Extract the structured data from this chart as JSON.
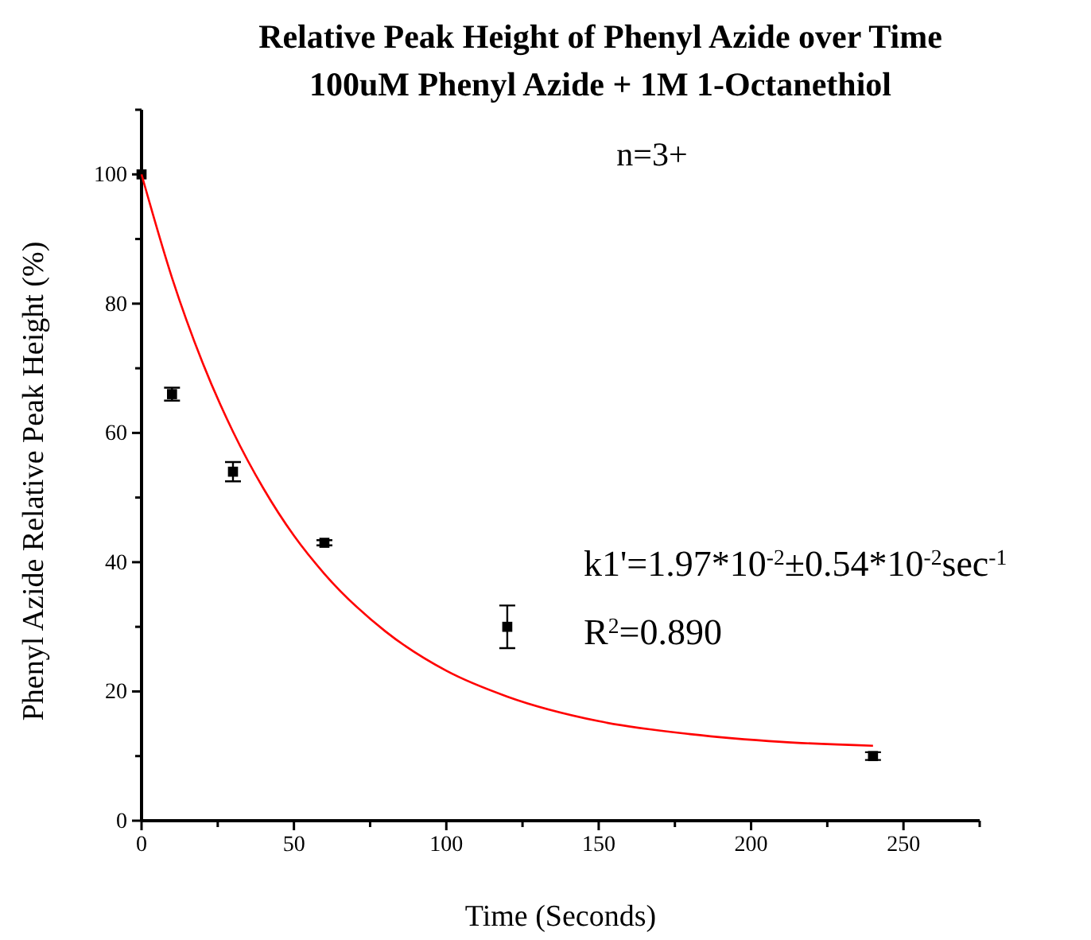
{
  "chart_data": {
    "type": "scatter",
    "title": "Relative Peak Height of Phenyl Azide over Time",
    "subtitle": "100uM Phenyl Azide + 1M 1-Octanethiol",
    "xlabel": "Time (Seconds)",
    "ylabel": "Phenyl Azide Relative Peak Height (%)",
    "annotations": [
      "n=3+",
      "k1'=1.97*10$^{-2}$±0.54*10$^{-2}$sec$^{-1}$",
      "R$^{2}$=0.890"
    ],
    "xlim": [
      0,
      275
    ],
    "ylim": [
      0,
      110
    ],
    "xticks": [
      0,
      {
        "value": 25,
        "label": null
      },
      50,
      {
        "value": 75,
        "label": null
      },
      100,
      {
        "value": 125,
        "label": null
      },
      150,
      {
        "value": 175,
        "label": null
      },
      200,
      {
        "value": 225,
        "label": null
      },
      250,
      {
        "value": 275,
        "label": null
      }
    ],
    "yticks": [
      0,
      {
        "value": 10,
        "label": null
      },
      20,
      {
        "value": 30,
        "label": null
      },
      40,
      {
        "value": 50,
        "label": null
      },
      60,
      {
        "value": 70,
        "label": null
      },
      80,
      {
        "value": 90,
        "label": null
      },
      100,
      {
        "value": 110,
        "label": null
      }
    ],
    "grid": false,
    "marker": "square",
    "series": [
      {
        "color": "#000000",
        "x": [
          0,
          10,
          30,
          60,
          120,
          240
        ],
        "values": [
          100,
          66,
          54,
          43,
          30,
          10
        ],
        "errors": [
          null,
          1,
          1.5,
          0.4,
          3.3,
          0.6
        ]
      },
      {
        "type": "line",
        "color": "#ff0000",
        "marker": "none",
        "line_style": "solid",
        "x": [
          0,
          10,
          20,
          30,
          40,
          50,
          60,
          80,
          100,
          120,
          150,
          180,
          210,
          240
        ],
        "values": [
          100,
          84,
          70.9,
          60.2,
          51.4,
          44.1,
          38.2,
          29.3,
          23.2,
          19.2,
          15.4,
          13.4,
          12.2,
          11.6
        ]
      }
    ]
  }
}
